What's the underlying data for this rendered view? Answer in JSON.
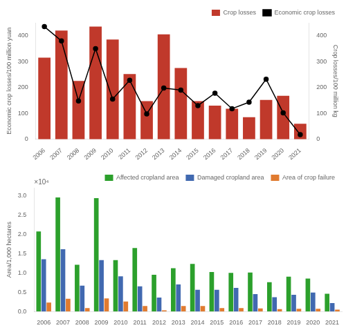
{
  "chart_data": [
    {
      "type": "bar",
      "categories": [
        "2006",
        "2007",
        "2008",
        "2009",
        "2010",
        "2011",
        "2012",
        "2013",
        "2014",
        "2015",
        "2016",
        "2017",
        "2018",
        "2019",
        "2020",
        "2021"
      ],
      "series": [
        {
          "name": "Crop losses",
          "type": "bar",
          "color": "#c0392b",
          "values": [
            315,
            420,
            225,
            435,
            385,
            252,
            147,
            405,
            275,
            147,
            130,
            118,
            85,
            152,
            168,
            60
          ]
        },
        {
          "name": "Economic crop losses",
          "type": "line",
          "color": "#000000",
          "marker": "circle",
          "axis": "y2",
          "values": [
            435,
            380,
            148,
            350,
            155,
            228,
            98,
            198,
            190,
            130,
            178,
            118,
            143,
            232,
            102,
            18
          ]
        }
      ],
      "ylabel": "Economic crop losses/100 million yuan",
      "y2label": "Crop losses/100 million kg",
      "ylim": [
        0,
        450
      ],
      "yticks": [
        0,
        100,
        200,
        300,
        400
      ],
      "y2lim": [
        0,
        450
      ],
      "y2ticks": [
        0,
        100,
        200,
        300,
        400
      ],
      "legend": "upper right",
      "grid": false
    },
    {
      "type": "bar",
      "categories": [
        "2006",
        "2007",
        "2008",
        "2009",
        "2010",
        "2011",
        "2012",
        "2013",
        "2014",
        "2015",
        "2016",
        "2017",
        "2018",
        "2019",
        "2020",
        "2021"
      ],
      "series": [
        {
          "name": "Affected cropland area",
          "color": "#2ca02c",
          "values": [
            2.07,
            2.95,
            1.21,
            2.93,
            1.33,
            1.64,
            0.95,
            1.12,
            1.23,
            1.02,
            1.0,
            1.01,
            0.76,
            0.9,
            0.85,
            0.46
          ]
        },
        {
          "name": "Damaged cropland area",
          "color": "#4169b0",
          "values": [
            1.35,
            1.61,
            0.67,
            1.33,
            0.91,
            0.65,
            0.36,
            0.7,
            0.56,
            0.56,
            0.61,
            0.45,
            0.37,
            0.43,
            0.49,
            0.22
          ]
        },
        {
          "name": "Area of crop failure",
          "color": "#e07b30",
          "values": [
            0.23,
            0.33,
            0.09,
            0.34,
            0.26,
            0.14,
            0.03,
            0.14,
            0.14,
            0.09,
            0.09,
            0.08,
            0.06,
            0.07,
            0.07,
            0.05
          ]
        }
      ],
      "ylabel": "Area/1,000 hectares",
      "ylim": [
        0,
        3.2
      ],
      "yticks": [
        {
          "value": 0,
          "label": "0.0"
        },
        {
          "value": 0.5,
          "label": "0.5"
        },
        {
          "value": 1,
          "label": "1.0"
        },
        {
          "value": 1.5,
          "label": "1.5"
        },
        {
          "value": 2,
          "label": "2.0"
        },
        {
          "value": 2.5,
          "label": "2.5"
        },
        {
          "value": 3,
          "label": "3.0"
        }
      ],
      "annotation": "×10⁴",
      "legend": "upper right",
      "grid": false
    }
  ]
}
